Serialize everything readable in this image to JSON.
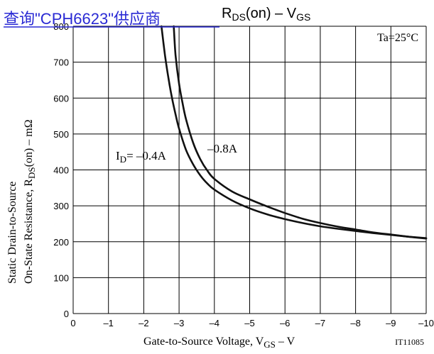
{
  "overlay_link": {
    "text": "查询\"CPH6623\"供应商",
    "color": "#2a2ad4"
  },
  "chart_data": {
    "type": "line",
    "title": {
      "main": "R",
      "sub": "DS",
      "rest": "(on)  –  V",
      "sub2": "GS"
    },
    "annotation": "Ta=25°C",
    "figure_code": "IT11085",
    "xlabel": {
      "main": "Gate-to-Source Voltage, V",
      "sub": "GS",
      "rest": "  –  V"
    },
    "ylabel_line1": "Static Drain-to-Source",
    "ylabel_line2": {
      "main": "On-State Resistance, R",
      "sub": "DS",
      "rest": "(on)  –  mΩ"
    },
    "xlim": [
      0,
      -10
    ],
    "ylim": [
      0,
      800
    ],
    "x_ticks": [
      0,
      -1,
      -2,
      -3,
      -4,
      -5,
      -6,
      -7,
      -8,
      -9,
      -10
    ],
    "x_tick_labels": [
      "0",
      "–1",
      "–2",
      "–3",
      "–4",
      "–5",
      "–6",
      "–7",
      "–8",
      "–9",
      "–10"
    ],
    "y_ticks": [
      0,
      100,
      200,
      300,
      400,
      500,
      600,
      700,
      800
    ],
    "y_tick_labels": [
      "0",
      "100",
      "200",
      "300",
      "400",
      "500",
      "600",
      "700",
      "800"
    ],
    "grid": true,
    "series": [
      {
        "name": "I_D = –0.4A",
        "label": {
          "main": "I",
          "sub": "D",
          "rest": "= –0.4A"
        },
        "x": [
          -2.5,
          -2.6,
          -2.7,
          -2.8,
          -2.9,
          -3.0,
          -3.2,
          -3.4,
          -3.6,
          -3.8,
          -4.0,
          -4.5,
          -5.0,
          -5.5,
          -6.0,
          -6.5,
          -7.0,
          -7.5,
          -8.0,
          -8.5,
          -9.0,
          -9.5,
          -10.0
        ],
        "y": [
          800,
          720,
          655,
          600,
          555,
          515,
          455,
          415,
          385,
          362,
          345,
          315,
          293,
          276,
          263,
          252,
          243,
          236,
          230,
          224,
          219,
          214,
          210
        ]
      },
      {
        "name": "–0.8A",
        "label": {
          "main": "–0.8A",
          "sub": "",
          "rest": ""
        },
        "x": [
          -2.85,
          -2.9,
          -3.0,
          -3.1,
          -3.2,
          -3.4,
          -3.6,
          -3.8,
          -4.0,
          -4.5,
          -5.0,
          -5.5,
          -6.0,
          -6.5,
          -7.0,
          -7.5,
          -8.0,
          -8.5,
          -9.0,
          -9.5,
          -10.0
        ],
        "y": [
          800,
          720,
          640,
          585,
          540,
          475,
          430,
          398,
          375,
          340,
          318,
          298,
          280,
          264,
          252,
          242,
          234,
          226,
          220,
          214,
          209
        ]
      }
    ]
  }
}
